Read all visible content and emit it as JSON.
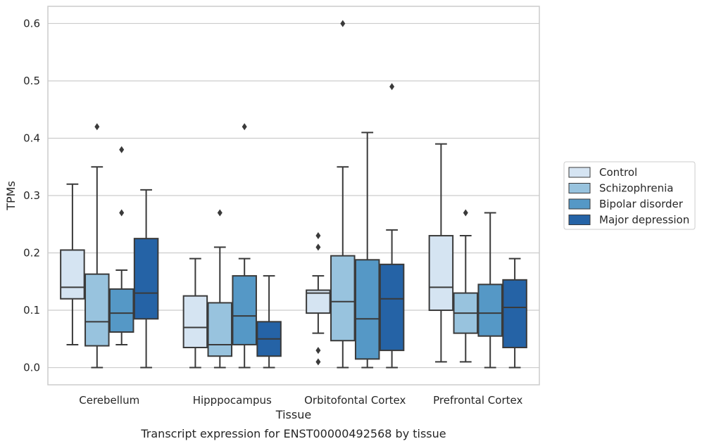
{
  "caption": "Transcript expression for ENST00000492568 by tissue",
  "chart_data": {
    "type": "box",
    "xlabel": "Tissue",
    "ylabel": "TPMs",
    "ylim": [
      -0.03,
      0.63
    ],
    "yticks": [
      "0.0",
      "0.1",
      "0.2",
      "0.3",
      "0.4",
      "0.5",
      "0.6"
    ],
    "grid": true,
    "legend_position": "right",
    "categories": [
      "Cerebellum",
      "Hipppocampus",
      "Orbitofontal Cortex",
      "Prefrontal Cortex"
    ],
    "series": [
      {
        "name": "Control",
        "color": "#d5e4f2",
        "boxes": [
          {
            "whisker_low": 0.04,
            "q1": 0.12,
            "median": 0.14,
            "q3": 0.205,
            "whisker_high": 0.32,
            "outliers": []
          },
          {
            "whisker_low": 0.0,
            "q1": 0.035,
            "median": 0.07,
            "q3": 0.125,
            "whisker_high": 0.19,
            "outliers": []
          },
          {
            "whisker_low": 0.06,
            "q1": 0.095,
            "median": 0.13,
            "q3": 0.135,
            "whisker_high": 0.16,
            "outliers": [
              0.23,
              0.21,
              0.03,
              0.01
            ]
          },
          {
            "whisker_low": 0.01,
            "q1": 0.1,
            "median": 0.14,
            "q3": 0.23,
            "whisker_high": 0.39,
            "outliers": []
          }
        ]
      },
      {
        "name": "Schizophrenia",
        "color": "#98c3de",
        "boxes": [
          {
            "whisker_low": 0.0,
            "q1": 0.038,
            "median": 0.08,
            "q3": 0.163,
            "whisker_high": 0.35,
            "outliers": [
              0.42
            ]
          },
          {
            "whisker_low": 0.0,
            "q1": 0.02,
            "median": 0.04,
            "q3": 0.113,
            "whisker_high": 0.21,
            "outliers": [
              0.27
            ]
          },
          {
            "whisker_low": 0.0,
            "q1": 0.047,
            "median": 0.115,
            "q3": 0.195,
            "whisker_high": 0.35,
            "outliers": [
              0.6
            ]
          },
          {
            "whisker_low": 0.01,
            "q1": 0.06,
            "median": 0.095,
            "q3": 0.13,
            "whisker_high": 0.23,
            "outliers": [
              0.27
            ]
          }
        ]
      },
      {
        "name": "Bipolar disorder",
        "color": "#5598c6",
        "boxes": [
          {
            "whisker_low": 0.04,
            "q1": 0.062,
            "median": 0.095,
            "q3": 0.137,
            "whisker_high": 0.17,
            "outliers": [
              0.38,
              0.27
            ]
          },
          {
            "whisker_low": 0.0,
            "q1": 0.04,
            "median": 0.09,
            "q3": 0.16,
            "whisker_high": 0.19,
            "outliers": [
              0.42
            ]
          },
          {
            "whisker_low": 0.0,
            "q1": 0.015,
            "median": 0.085,
            "q3": 0.188,
            "whisker_high": 0.41,
            "outliers": []
          },
          {
            "whisker_low": 0.0,
            "q1": 0.055,
            "median": 0.095,
            "q3": 0.145,
            "whisker_high": 0.27,
            "outliers": []
          }
        ]
      },
      {
        "name": "Major depression",
        "color": "#2563a6",
        "boxes": [
          {
            "whisker_low": 0.0,
            "q1": 0.085,
            "median": 0.13,
            "q3": 0.225,
            "whisker_high": 0.31,
            "outliers": []
          },
          {
            "whisker_low": 0.0,
            "q1": 0.02,
            "median": 0.05,
            "q3": 0.08,
            "whisker_high": 0.16,
            "outliers": []
          },
          {
            "whisker_low": 0.0,
            "q1": 0.03,
            "median": 0.12,
            "q3": 0.18,
            "whisker_high": 0.24,
            "outliers": [
              0.49
            ]
          },
          {
            "whisker_low": 0.0,
            "q1": 0.035,
            "median": 0.105,
            "q3": 0.153,
            "whisker_high": 0.19,
            "outliers": []
          }
        ]
      }
    ]
  }
}
